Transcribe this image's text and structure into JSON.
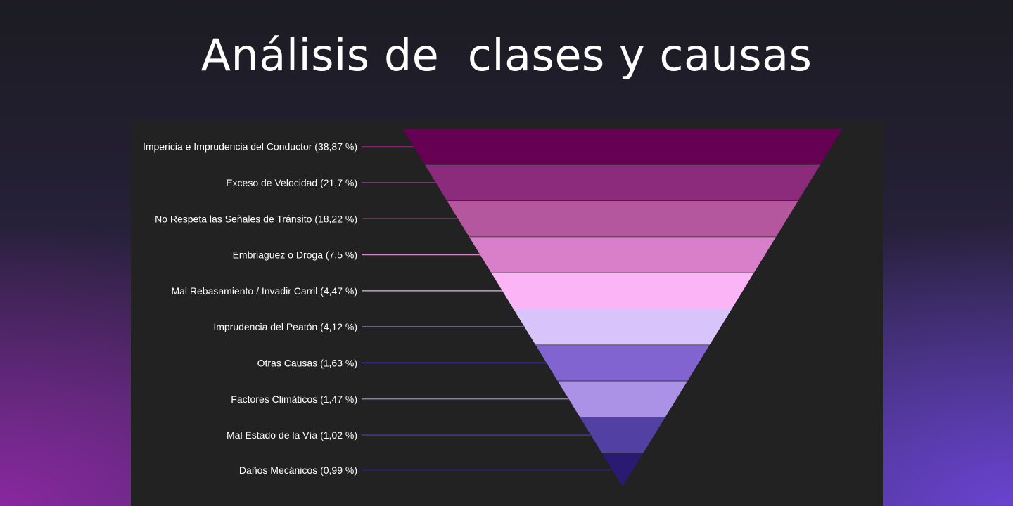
{
  "title": "Análisis de  clases y causas",
  "chart_data": {
    "type": "funnel",
    "title": "",
    "categories": [
      "Impericia e Imprudencia del Conductor",
      "Exceso de Velocidad",
      "No Respeta las Señales de Tránsito",
      "Embriaguez o Droga",
      "Mal Rebasamiento / Invadir Carril",
      "Imprudencia del Peatón",
      "Otras Causas",
      "Factores Climáticos",
      "Mal Estado de la Vía",
      "Daños Mecánicos"
    ],
    "labels": [
      "Impericia e Imprudencia del Conductor (38,87 %)",
      "Exceso de Velocidad (21,7 %)",
      "No Respeta las Señales de Tránsito (18,22 %)",
      "Embriaguez o Droga (7,5 %)",
      "Mal Rebasamiento / Invadir Carril (4,47 %)",
      "Imprudencia del Peatón (4,12 %)",
      "Otras Causas (1,63 %)",
      "Factores Climáticos (1,47 %)",
      "Mal Estado de la Vía (1,02 %)",
      "Daños Mecánicos (0,99 %)"
    ],
    "values": [
      38.87,
      21.7,
      18.22,
      7.5,
      4.47,
      4.12,
      1.63,
      1.47,
      1.02,
      0.99
    ],
    "unit": "%",
    "colors": [
      "#650052",
      "#8c2a7b",
      "#b5579f",
      "#d77fc9",
      "#fbb4f5",
      "#d9c3fb",
      "#8164cf",
      "#ab92e6",
      "#5340a3",
      "#2b1a72"
    ],
    "leader_colors": [
      "#7a2a6c",
      "#9a3f88",
      "#b866a8",
      "#d08ac6",
      "#e7b6ea",
      "#b9a6e8",
      "#6f5cc4",
      "#9b88de",
      "#4a3a9c",
      "#2f236e"
    ],
    "legend": "none",
    "grid": false
  }
}
